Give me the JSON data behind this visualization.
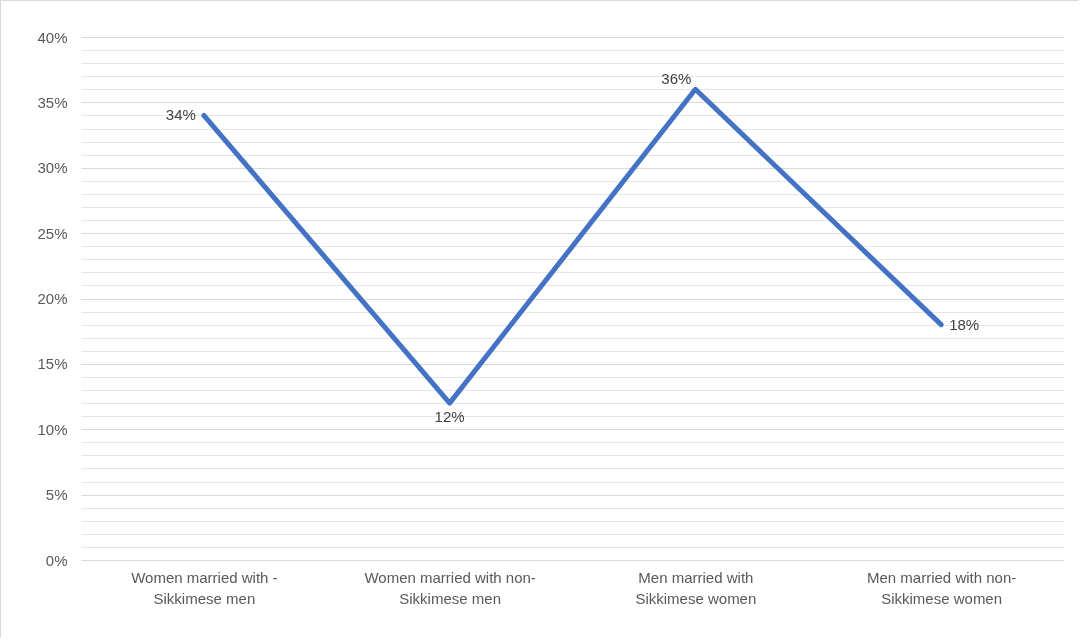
{
  "chart_data": {
    "type": "line",
    "categories": [
      "Women married with - Sikkimese men",
      "Women married with non-Sikkimese men",
      "Men married with Sikkimese women",
      "Men married with non-Sikkimese women"
    ],
    "series": [
      {
        "color": "#4472c4",
        "values": [
          34,
          12,
          36,
          18
        ],
        "value_labels": [
          "34%",
          "12%",
          "36%",
          "18%"
        ]
      }
    ],
    "ylim": [
      0,
      40
    ],
    "yticks": [
      {
        "value": 0,
        "label": "0%"
      },
      {
        "value": 1,
        "label": null
      },
      {
        "value": 2,
        "label": null
      },
      {
        "value": 3,
        "label": null
      },
      {
        "value": 4,
        "label": null
      },
      {
        "value": 5,
        "label": "5%"
      },
      {
        "value": 6,
        "label": null
      },
      {
        "value": 7,
        "label": null
      },
      {
        "value": 8,
        "label": null
      },
      {
        "value": 9,
        "label": null
      },
      {
        "value": 10,
        "label": "10%"
      },
      {
        "value": 11,
        "label": null
      },
      {
        "value": 12,
        "label": null
      },
      {
        "value": 13,
        "label": null
      },
      {
        "value": 14,
        "label": null
      },
      {
        "value": 15,
        "label": "15%"
      },
      {
        "value": 16,
        "label": null
      },
      {
        "value": 17,
        "label": null
      },
      {
        "value": 18,
        "label": null
      },
      {
        "value": 19,
        "label": null
      },
      {
        "value": 20,
        "label": "20%"
      },
      {
        "value": 21,
        "label": null
      },
      {
        "value": 22,
        "label": null
      },
      {
        "value": 23,
        "label": null
      },
      {
        "value": 24,
        "label": null
      },
      {
        "value": 25,
        "label": "25%"
      },
      {
        "value": 26,
        "label": null
      },
      {
        "value": 27,
        "label": null
      },
      {
        "value": 28,
        "label": null
      },
      {
        "value": 29,
        "label": null
      },
      {
        "value": 30,
        "label": "30%"
      },
      {
        "value": 31,
        "label": null
      },
      {
        "value": 32,
        "label": null
      },
      {
        "value": 33,
        "label": null
      },
      {
        "value": 34,
        "label": null
      },
      {
        "value": 35,
        "label": "35%"
      },
      {
        "value": 36,
        "label": null
      },
      {
        "value": 37,
        "label": null
      },
      {
        "value": 38,
        "label": null
      },
      {
        "value": 39,
        "label": null
      },
      {
        "value": 40,
        "label": "40%"
      }
    ],
    "grid": "y",
    "marker": "none",
    "line_style": "solid"
  }
}
